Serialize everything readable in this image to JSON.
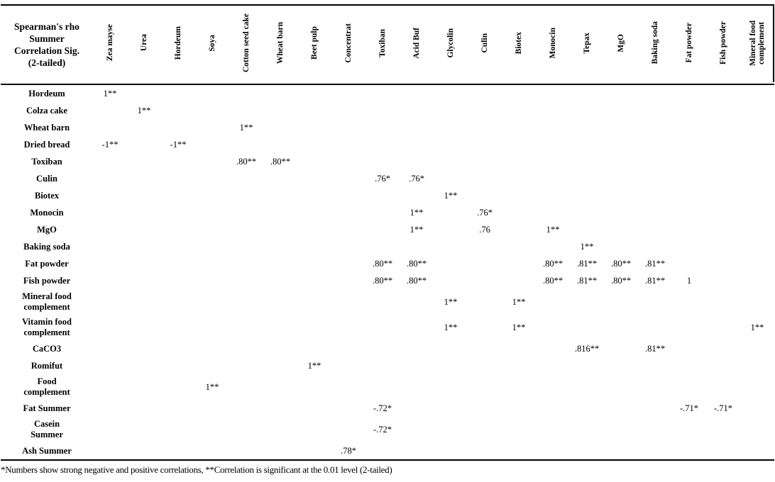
{
  "table": {
    "corner_header": [
      "Spearman's rho",
      "Summer",
      "Correlation Sig.",
      "(2-tailed)"
    ],
    "columns": [
      "Zea mayse",
      "Urea",
      "Hordeum",
      "Soya",
      "Cotton seed cake",
      "Wheat barn",
      "Beet pulp",
      "Concentrat",
      "Toxiban",
      "Acid Buf",
      "Glycolin",
      "Culin",
      "Biotex",
      "Monocin",
      "Tepax",
      "MgO",
      "Baking soda",
      "Fat powder",
      "Fish powder",
      "Mineral food complement"
    ],
    "rows": [
      {
        "label": "Hordeum",
        "cells": {
          "0": "1**"
        }
      },
      {
        "label": "Colza cake",
        "cells": {
          "1": "1**"
        }
      },
      {
        "label": "Wheat barn",
        "cells": {
          "4": "1**"
        }
      },
      {
        "label": "Dried bread",
        "cells": {
          "0": "-1**",
          "2": "-1**"
        }
      },
      {
        "label": "Toxiban",
        "cells": {
          "4": ".80**",
          "5": ".80**"
        }
      },
      {
        "label": "Culin",
        "cells": {
          "8": ".76*",
          "9": ".76*"
        }
      },
      {
        "label": "Biotex",
        "cells": {
          "10": "1**"
        }
      },
      {
        "label": "Monocin",
        "cells": {
          "9": "1**",
          "11": ".76*"
        }
      },
      {
        "label": "MgO",
        "cells": {
          "9": "1**",
          "11": ".76",
          "13": "1**"
        }
      },
      {
        "label": "Baking soda",
        "cells": {
          "14": "1**"
        }
      },
      {
        "label": "Fat powder",
        "cells": {
          "8": ".80**",
          "9": ".80**",
          "13": ".80**",
          "14": ".81**",
          "15": ".80**",
          "16": ".81**"
        }
      },
      {
        "label": "Fish powder",
        "cells": {
          "8": ".80**",
          "9": ".80**",
          "13": ".80**",
          "14": ".81**",
          "15": ".80**",
          "16": ".81**",
          "17": "1"
        }
      },
      {
        "label": "Mineral food\ncomplement",
        "cells": {
          "10": "1**",
          "12": "1**"
        }
      },
      {
        "label": "Vitamin food\ncomplement",
        "cells": {
          "10": "1**",
          "12": "1**",
          "19": "1**"
        }
      },
      {
        "label": "CaCO3",
        "cells": {
          "14": ".816**",
          "16": ".81**"
        }
      },
      {
        "label": "Romifut",
        "cells": {
          "6": "1**"
        }
      },
      {
        "label": "Food\ncomplement",
        "cells": {
          "3": "1**"
        }
      },
      {
        "label": "Fat Summer",
        "cells": {
          "8": "-.72*",
          "17": "-.71*",
          "18": "-.71*"
        }
      },
      {
        "label": "Casein\nSummer",
        "cells": {
          "8": "-.72*"
        }
      },
      {
        "label": "Ash Summer",
        "cells": {
          "7": ".78*"
        }
      }
    ]
  },
  "footnote": "*Numbers show strong negative and positive correlations, **Correlation is significant at the 0.01 level (2-tailed)"
}
